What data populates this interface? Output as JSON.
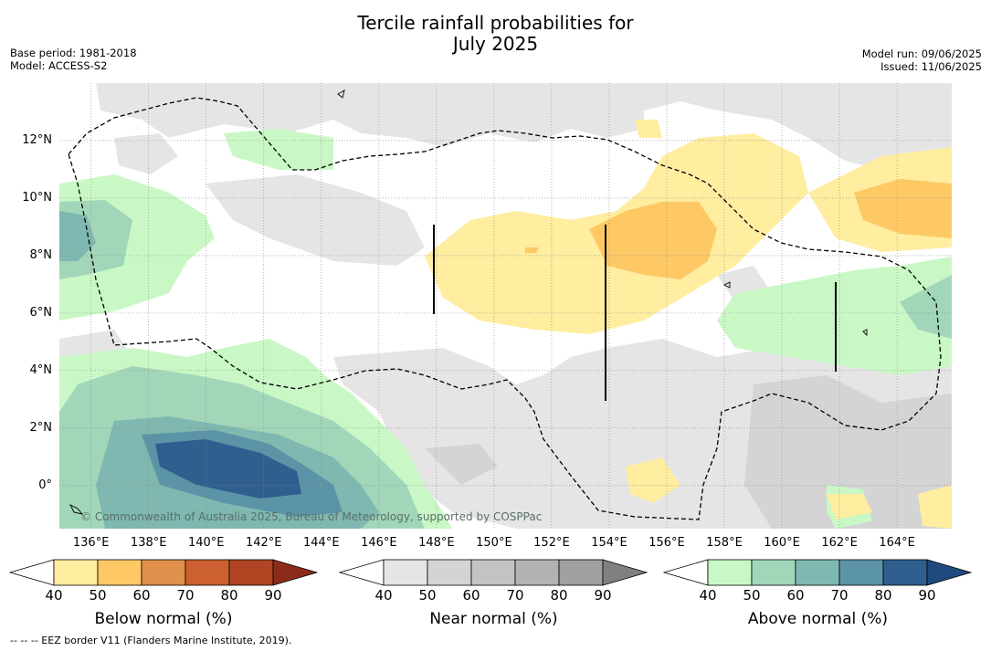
{
  "title_line1": "Tercile rainfall probabilities for",
  "title_line2": "July 2025",
  "base_period": "Base period: 1981-2018",
  "model": "Model: ACCESS-S2",
  "model_run": "Model run: 09/06/2025",
  "issued": "Issued: 11/06/2025",
  "copyright": "© Commonwealth of Australia 2025, Bureau of Meteorology, supported by COSPPac",
  "footnote": "-- -- -- EEZ border V11 (Flanders Marine Institute, 2019).",
  "map": {
    "lon_range": [
      134.9,
      165.9
    ],
    "lat_range": [
      -1.5,
      14.0
    ],
    "lon_ticks": [
      "136°E",
      "138°E",
      "140°E",
      "142°E",
      "144°E",
      "146°E",
      "148°E",
      "150°E",
      "152°E",
      "154°E",
      "156°E",
      "158°E",
      "160°E",
      "162°E",
      "164°E"
    ],
    "lat_ticks": [
      "12°N",
      "10°N",
      "8°N",
      "6°N",
      "4°N",
      "2°N",
      "0°"
    ]
  },
  "colorbars": [
    {
      "label": "Below normal (%)",
      "ticks": [
        "40",
        "50",
        "60",
        "70",
        "80",
        "90"
      ],
      "colors": [
        "#ffffff",
        "#ffeda0",
        "#fec965",
        "#e0904a",
        "#cc6030",
        "#b04423",
        "#8c2b1a"
      ]
    },
    {
      "label": "Near normal (%)",
      "ticks": [
        "40",
        "50",
        "60",
        "70",
        "80",
        "90"
      ],
      "colors": [
        "#ffffff",
        "#e5e5e5",
        "#d4d4d4",
        "#c3c3c3",
        "#b2b2b2",
        "#a0a0a0",
        "#808080"
      ]
    },
    {
      "label": "Above normal (%)",
      "ticks": [
        "40",
        "50",
        "60",
        "70",
        "80",
        "90"
      ],
      "colors": [
        "#ffffff",
        "#c9f8c6",
        "#a2d6b9",
        "#7fb8b0",
        "#5b94a6",
        "#2f5f8f",
        "#1f4a80"
      ]
    }
  ]
}
